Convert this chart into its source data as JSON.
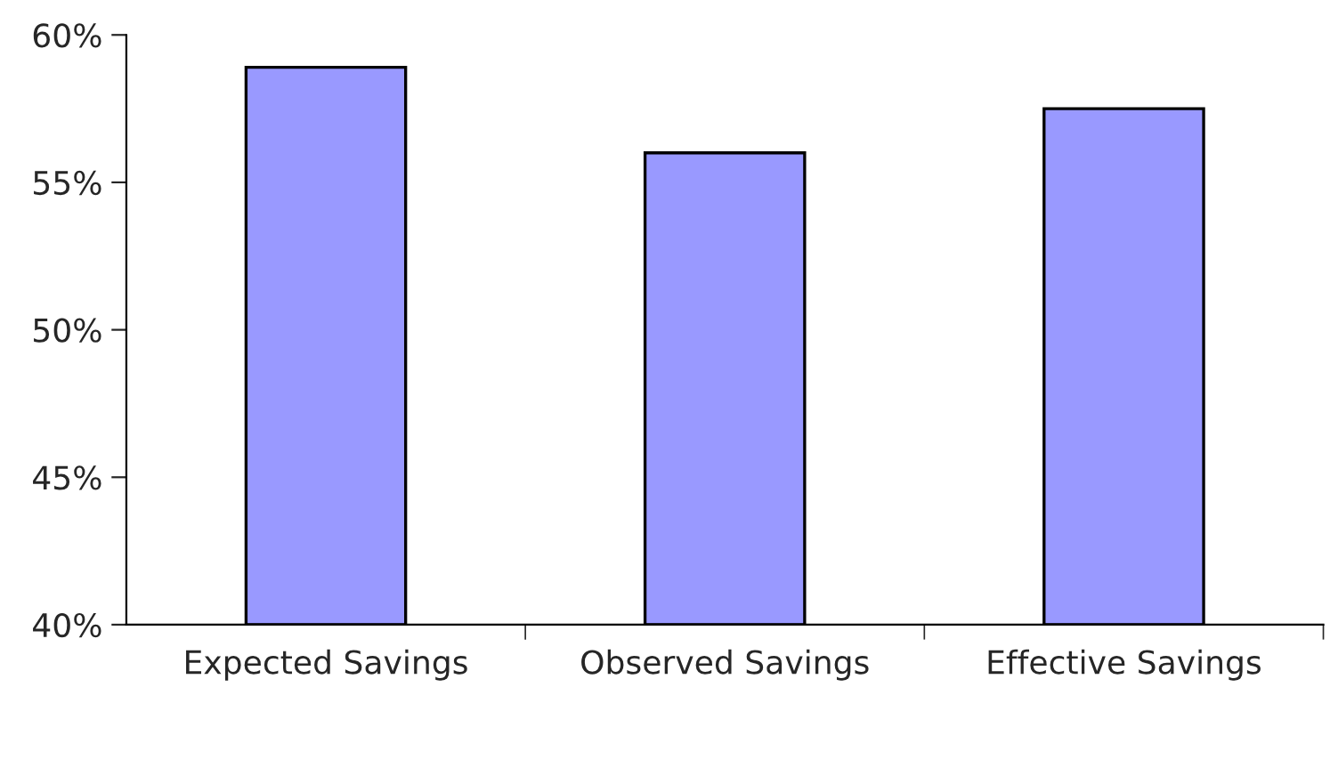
{
  "chart_data": {
    "type": "bar",
    "categories": [
      "Expected Savings",
      "Observed Savings",
      "Effective Savings"
    ],
    "values": [
      58.9,
      56.0,
      57.5
    ],
    "color": "#9999ff",
    "ylim": [
      40,
      60
    ],
    "yticks": [
      {
        "value": 40,
        "label": "40%"
      },
      {
        "value": 45,
        "label": "45%"
      },
      {
        "value": 50,
        "label": "50%"
      },
      {
        "value": 55,
        "label": "55%"
      },
      {
        "value": 60,
        "label": "60%"
      }
    ],
    "grid": false
  }
}
